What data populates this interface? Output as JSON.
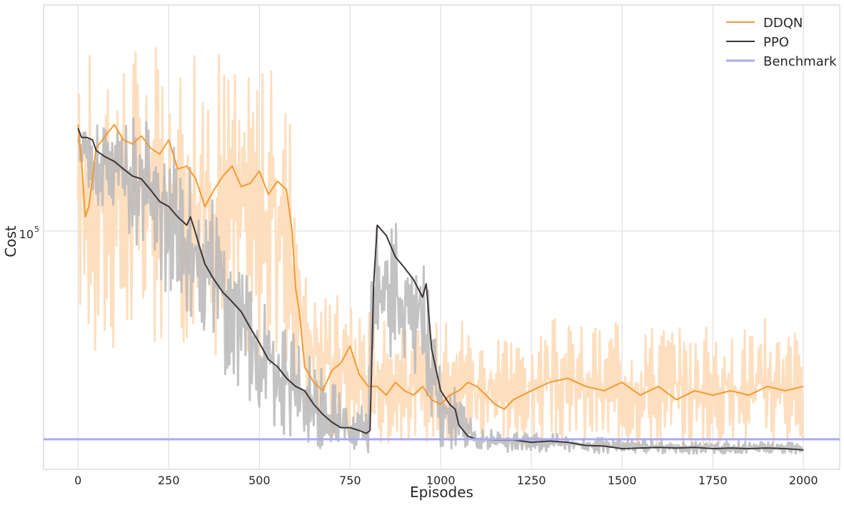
{
  "chart_data": {
    "type": "line",
    "title": "",
    "xlabel": "Episodes",
    "ylabel": "Cost",
    "xlim": [
      -95,
      2100
    ],
    "ylim": [
      20000,
      460000
    ],
    "yscale": "log",
    "grid": true,
    "legend_position": "top-right",
    "x_ticks": [
      0,
      250,
      500,
      750,
      1000,
      1250,
      1500,
      1750,
      2000
    ],
    "y_ticks": [
      {
        "value": 100000,
        "base": "10",
        "exponent": "5"
      }
    ],
    "benchmark": {
      "name": "Benchmark",
      "value": 24500,
      "color": "#aaaaf2"
    },
    "series": [
      {
        "name": "DDQN",
        "color": "#f39a30",
        "raw_color": "#fddcb8",
        "smoothed": [
          [
            0,
            205000
          ],
          [
            10,
            160000
          ],
          [
            20,
            110000
          ],
          [
            30,
            118000
          ],
          [
            50,
            175000
          ],
          [
            75,
            190000
          ],
          [
            100,
            205000
          ],
          [
            125,
            185000
          ],
          [
            150,
            180000
          ],
          [
            175,
            190000
          ],
          [
            200,
            175000
          ],
          [
            225,
            168000
          ],
          [
            250,
            185000
          ],
          [
            275,
            152000
          ],
          [
            300,
            155000
          ],
          [
            325,
            142000
          ],
          [
            350,
            118000
          ],
          [
            375,
            132000
          ],
          [
            400,
            145000
          ],
          [
            425,
            155000
          ],
          [
            450,
            135000
          ],
          [
            475,
            138000
          ],
          [
            500,
            150000
          ],
          [
            525,
            128000
          ],
          [
            550,
            140000
          ],
          [
            575,
            132000
          ],
          [
            590,
            100000
          ],
          [
            600,
            68000
          ],
          [
            610,
            58000
          ],
          [
            625,
            40000
          ],
          [
            650,
            36000
          ],
          [
            675,
            34000
          ],
          [
            700,
            39000
          ],
          [
            725,
            41000
          ],
          [
            750,
            46000
          ],
          [
            775,
            38000
          ],
          [
            800,
            35000
          ],
          [
            825,
            35000
          ],
          [
            850,
            33000
          ],
          [
            875,
            36000
          ],
          [
            900,
            34000
          ],
          [
            925,
            33000
          ],
          [
            950,
            35000
          ],
          [
            975,
            32000
          ],
          [
            1000,
            31000
          ],
          [
            1025,
            33000
          ],
          [
            1050,
            34000
          ],
          [
            1075,
            36000
          ],
          [
            1100,
            35000
          ],
          [
            1125,
            33000
          ],
          [
            1150,
            31000
          ],
          [
            1175,
            30000
          ],
          [
            1200,
            32000
          ],
          [
            1250,
            34000
          ],
          [
            1300,
            36000
          ],
          [
            1350,
            37000
          ],
          [
            1400,
            35000
          ],
          [
            1450,
            34000
          ],
          [
            1500,
            36000
          ],
          [
            1550,
            33000
          ],
          [
            1600,
            35000
          ],
          [
            1650,
            32000
          ],
          [
            1700,
            34000
          ],
          [
            1750,
            33000
          ],
          [
            1800,
            34000
          ],
          [
            1850,
            33000
          ],
          [
            1900,
            35000
          ],
          [
            1950,
            34000
          ],
          [
            2000,
            35000
          ]
        ],
        "raw_band": [
          [
            0,
            60000,
            260000
          ],
          [
            50,
            38000,
            400000
          ],
          [
            100,
            44000,
            350000
          ],
          [
            150,
            42000,
            390000
          ],
          [
            200,
            46000,
            380000
          ],
          [
            250,
            44000,
            340000
          ],
          [
            300,
            48000,
            360000
          ],
          [
            350,
            46000,
            320000
          ],
          [
            400,
            40000,
            340000
          ],
          [
            450,
            44000,
            300000
          ],
          [
            500,
            42000,
            310000
          ],
          [
            550,
            38000,
            300000
          ],
          [
            575,
            36000,
            280000
          ],
          [
            600,
            30000,
            180000
          ],
          [
            625,
            30000,
            80000
          ],
          [
            650,
            26000,
            68000
          ],
          [
            700,
            24000,
            70000
          ],
          [
            750,
            24000,
            62000
          ],
          [
            800,
            24000,
            62000
          ],
          [
            850,
            24000,
            55000
          ],
          [
            900,
            24000,
            52000
          ],
          [
            950,
            24000,
            52000
          ],
          [
            1000,
            24000,
            55000
          ],
          [
            1050,
            24000,
            60000
          ],
          [
            1100,
            24000,
            52000
          ],
          [
            1150,
            24000,
            48000
          ],
          [
            1200,
            23000,
            50000
          ],
          [
            1250,
            23000,
            52000
          ],
          [
            1300,
            23000,
            56000
          ],
          [
            1350,
            23000,
            55000
          ],
          [
            1400,
            23000,
            54000
          ],
          [
            1450,
            23000,
            52000
          ],
          [
            1500,
            23000,
            55000
          ],
          [
            1550,
            23000,
            54000
          ],
          [
            1600,
            23000,
            56000
          ],
          [
            1650,
            23000,
            54000
          ],
          [
            1700,
            23000,
            52000
          ],
          [
            1750,
            23000,
            54000
          ],
          [
            1800,
            23000,
            52000
          ],
          [
            1850,
            23000,
            55000
          ],
          [
            1900,
            23000,
            56000
          ],
          [
            1950,
            23000,
            54000
          ],
          [
            2000,
            23000,
            52000
          ]
        ]
      },
      {
        "name": "PPO",
        "color": "#3d3535",
        "raw_color": "#b8b8ba",
        "smoothed": [
          [
            0,
            200000
          ],
          [
            10,
            188000
          ],
          [
            25,
            188000
          ],
          [
            40,
            185000
          ],
          [
            50,
            172000
          ],
          [
            75,
            165000
          ],
          [
            100,
            160000
          ],
          [
            125,
            152000
          ],
          [
            150,
            145000
          ],
          [
            175,
            142000
          ],
          [
            200,
            132000
          ],
          [
            225,
            122000
          ],
          [
            250,
            118000
          ],
          [
            275,
            110000
          ],
          [
            300,
            104000
          ],
          [
            310,
            110000
          ],
          [
            320,
            102000
          ],
          [
            335,
            90000
          ],
          [
            350,
            80000
          ],
          [
            375,
            72000
          ],
          [
            400,
            66000
          ],
          [
            425,
            62000
          ],
          [
            450,
            58000
          ],
          [
            475,
            52000
          ],
          [
            500,
            47000
          ],
          [
            525,
            42000
          ],
          [
            550,
            40000
          ],
          [
            575,
            37000
          ],
          [
            600,
            35000
          ],
          [
            625,
            34000
          ],
          [
            650,
            31000
          ],
          [
            675,
            29000
          ],
          [
            700,
            27500
          ],
          [
            725,
            26500
          ],
          [
            750,
            26500
          ],
          [
            775,
            26000
          ],
          [
            795,
            25500
          ],
          [
            805,
            26000
          ],
          [
            815,
            70000
          ],
          [
            825,
            104000
          ],
          [
            850,
            97000
          ],
          [
            875,
            84000
          ],
          [
            900,
            78000
          ],
          [
            925,
            72000
          ],
          [
            950,
            64000
          ],
          [
            960,
            70000
          ],
          [
            975,
            45000
          ],
          [
            1000,
            34000
          ],
          [
            1025,
            31000
          ],
          [
            1040,
            30000
          ],
          [
            1050,
            27000
          ],
          [
            1075,
            25000
          ],
          [
            1100,
            24500
          ],
          [
            1150,
            24400
          ],
          [
            1200,
            24400
          ],
          [
            1250,
            24000
          ],
          [
            1300,
            24200
          ],
          [
            1350,
            24000
          ],
          [
            1400,
            23500
          ],
          [
            1450,
            23400
          ],
          [
            1500,
            23000
          ],
          [
            1550,
            23100
          ],
          [
            1600,
            23200
          ],
          [
            1650,
            23100
          ],
          [
            1700,
            23200
          ],
          [
            1750,
            23000
          ],
          [
            1800,
            23100
          ],
          [
            1850,
            23000
          ],
          [
            1900,
            23100
          ],
          [
            1950,
            23000
          ],
          [
            2000,
            22800
          ]
        ],
        "raw_band": [
          [
            0,
            150000,
            220000
          ],
          [
            50,
            120000,
            210000
          ],
          [
            100,
            110000,
            230000
          ],
          [
            150,
            90000,
            240000
          ],
          [
            200,
            78000,
            210000
          ],
          [
            250,
            62000,
            190000
          ],
          [
            300,
            55000,
            160000
          ],
          [
            350,
            50000,
            135000
          ],
          [
            400,
            38000,
            110000
          ],
          [
            450,
            34000,
            88000
          ],
          [
            500,
            28000,
            70000
          ],
          [
            550,
            26000,
            58000
          ],
          [
            600,
            24000,
            50000
          ],
          [
            650,
            23000,
            45000
          ],
          [
            700,
            22000,
            36000
          ],
          [
            750,
            22000,
            32000
          ],
          [
            800,
            22000,
            30000
          ],
          [
            815,
            45000,
            110000
          ],
          [
            850,
            42000,
            105000
          ],
          [
            900,
            40000,
            105000
          ],
          [
            950,
            36000,
            100000
          ],
          [
            975,
            26000,
            52000
          ],
          [
            1000,
            23000,
            42000
          ],
          [
            1050,
            22500,
            34000
          ],
          [
            1100,
            22500,
            26500
          ],
          [
            1200,
            22500,
            26000
          ],
          [
            1300,
            22500,
            25500
          ],
          [
            1400,
            22300,
            25000
          ],
          [
            1500,
            22200,
            24500
          ],
          [
            1600,
            22200,
            24400
          ],
          [
            1700,
            22200,
            24200
          ],
          [
            1800,
            22200,
            24200
          ],
          [
            1900,
            22200,
            24100
          ],
          [
            2000,
            22200,
            24000
          ]
        ]
      }
    ]
  }
}
